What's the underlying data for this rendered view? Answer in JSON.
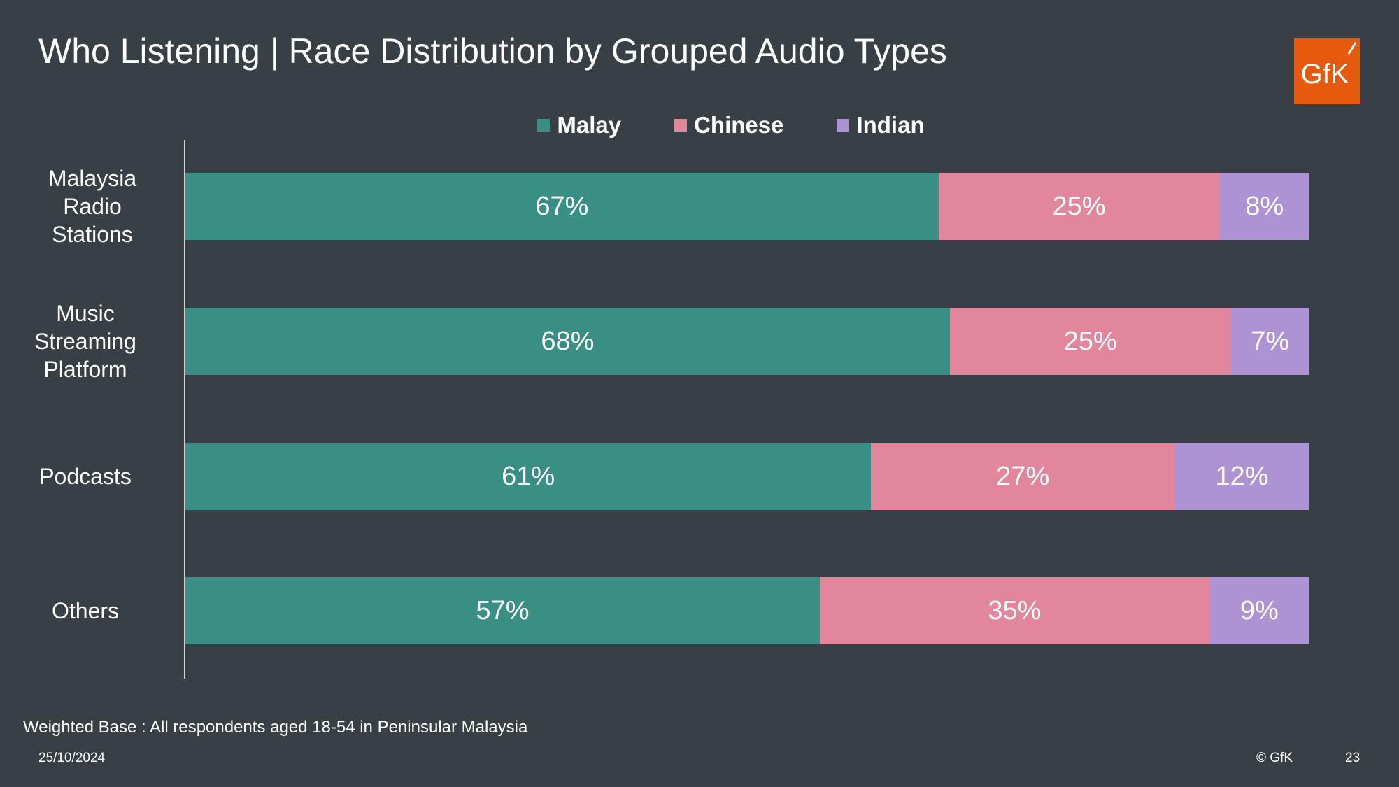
{
  "title": "Who Listening | Race Distribution by Grouped Audio Types",
  "logo_text": "GfK",
  "chart_data": {
    "type": "bar",
    "orientation": "horizontal",
    "stacked": true,
    "categories": [
      "Malaysia Radio Stations",
      "Music Streaming Platform",
      "Podcasts",
      "Others"
    ],
    "series": [
      {
        "name": "Malay",
        "color": "#3a8f85",
        "values": [
          67,
          68,
          61,
          57
        ],
        "labels": [
          "67%",
          "68%",
          "61%",
          "57%"
        ]
      },
      {
        "name": "Chinese",
        "color": "#e2869c",
        "values": [
          25,
          25,
          27,
          35
        ],
        "labels": [
          "25%",
          "25%",
          "27%",
          "35%"
        ]
      },
      {
        "name": "Indian",
        "color": "#ae93d4",
        "values": [
          8,
          7,
          12,
          9
        ],
        "labels": [
          "8%",
          "7%",
          "12%",
          "9%"
        ]
      }
    ],
    "legend_position": "top",
    "grid": false,
    "xlim": [
      0,
      100
    ]
  },
  "footer": {
    "base": "Weighted Base : All respondents aged 18-54 in Peninsular Malaysia",
    "date": "25/10/2024",
    "copyright": "© GfK",
    "page": "23"
  }
}
